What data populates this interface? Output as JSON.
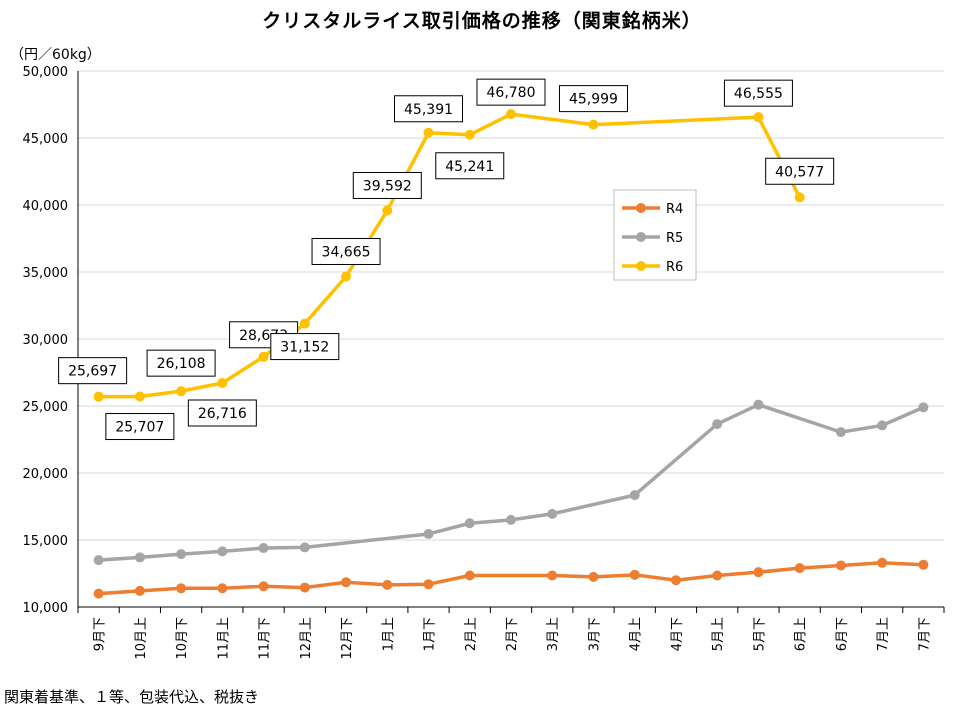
{
  "chart_data": {
    "type": "line",
    "title": "クリスタルライス取引価格の推移（関東銘柄米）",
    "ylabel": "（円／60kg）",
    "footnote": "関東着基準、１等、包装代込、税抜き",
    "ylim": [
      10000,
      50000
    ],
    "yticks": [
      "10,000",
      "15,000",
      "20,000",
      "25,000",
      "30,000",
      "35,000",
      "40,000",
      "45,000",
      "50,000"
    ],
    "categories": [
      "9月下",
      "10月上",
      "10月下",
      "11月上",
      "11月下",
      "12月上",
      "12月下",
      "1月上",
      "1月下",
      "2月上",
      "2月下",
      "3月上",
      "3月下",
      "4月上",
      "4月下",
      "5月上",
      "5月下",
      "6月上",
      "6月下",
      "7月上",
      "7月下"
    ],
    "series": [
      {
        "name": "R4",
        "color": "#ed7d31",
        "values": [
          11000,
          11200,
          11400,
          11400,
          11550,
          11450,
          11850,
          11650,
          11700,
          12350,
          null,
          12350,
          12250,
          12400,
          12000,
          12350,
          12600,
          12900,
          13100,
          13300,
          13150
        ]
      },
      {
        "name": "R5",
        "color": "#a5a5a5",
        "values": [
          13500,
          13700,
          13950,
          14150,
          14400,
          14450,
          null,
          null,
          15450,
          16250,
          16500,
          16950,
          null,
          18350,
          null,
          23650,
          25100,
          null,
          23050,
          23550,
          24900
        ]
      },
      {
        "name": "R6",
        "color": "#ffc000",
        "values": [
          25697,
          25707,
          26108,
          26716,
          28673,
          31152,
          34665,
          39592,
          45391,
          45241,
          46780,
          null,
          45999,
          null,
          null,
          null,
          46555,
          40577,
          null,
          null,
          null
        ]
      }
    ],
    "data_labels": [
      "25,697",
      "25,707",
      "26,108",
      "26,716",
      "28,673",
      "31,152",
      "34,665",
      "39,592",
      "45,391",
      "45,241",
      "46,780",
      "45,999",
      "46,555",
      "40,577"
    ],
    "legend_position": "right-middle"
  }
}
